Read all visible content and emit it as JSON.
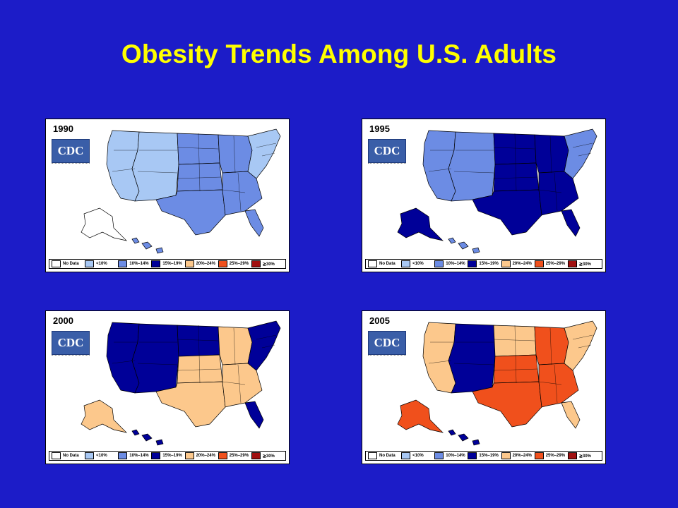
{
  "title": "Obesity Trends Among U.S. Adults",
  "logo_text": "CDC",
  "colors": {
    "no_data": "#ffffff",
    "lt10": "#a8c8f4",
    "10_14": "#6c8ce4",
    "15_19": "#000098",
    "20_24": "#fcc88c",
    "25_29": "#f0501c",
    "ge30": "#a01010"
  },
  "legend": [
    {
      "key": "no_data",
      "label": "No Data"
    },
    {
      "key": "lt10",
      "label": "<10%"
    },
    {
      "key": "10_14",
      "label": "10%–14%"
    },
    {
      "key": "15_19",
      "label": "15%–19%"
    },
    {
      "key": "20_24",
      "label": "20%–24%"
    },
    {
      "key": "25_29",
      "label": "25%–29%"
    },
    {
      "key": "ge30",
      "label": "≧30%"
    }
  ],
  "maps": [
    {
      "year": "1990",
      "regions": {
        "west": "lt10",
        "mountain": "lt10",
        "plains_n": "10_14",
        "plains_s": "10_14",
        "texas": "10_14",
        "midwest": "10_14",
        "south": "10_14",
        "florida": "10_14",
        "northeast": "lt10",
        "alaska": "no_data",
        "hawaii": "10_14"
      }
    },
    {
      "year": "1995",
      "regions": {
        "west": "10_14",
        "mountain": "10_14",
        "plains_n": "15_19",
        "plains_s": "15_19",
        "texas": "15_19",
        "midwest": "15_19",
        "south": "15_19",
        "florida": "15_19",
        "northeast": "10_14",
        "alaska": "15_19",
        "hawaii": "10_14"
      }
    },
    {
      "year": "2000",
      "regions": {
        "west": "15_19",
        "mountain": "15_19",
        "plains_n": "15_19",
        "plains_s": "20_24",
        "texas": "20_24",
        "midwest": "20_24",
        "south": "20_24",
        "florida": "15_19",
        "northeast": "15_19",
        "alaska": "20_24",
        "hawaii": "15_19"
      }
    },
    {
      "year": "2005",
      "regions": {
        "west": "20_24",
        "mountain": "15_19",
        "plains_n": "20_24",
        "plains_s": "25_29",
        "texas": "25_29",
        "midwest": "25_29",
        "south": "25_29",
        "florida": "20_24",
        "northeast": "20_24",
        "alaska": "25_29",
        "hawaii": "15_19"
      }
    }
  ]
}
